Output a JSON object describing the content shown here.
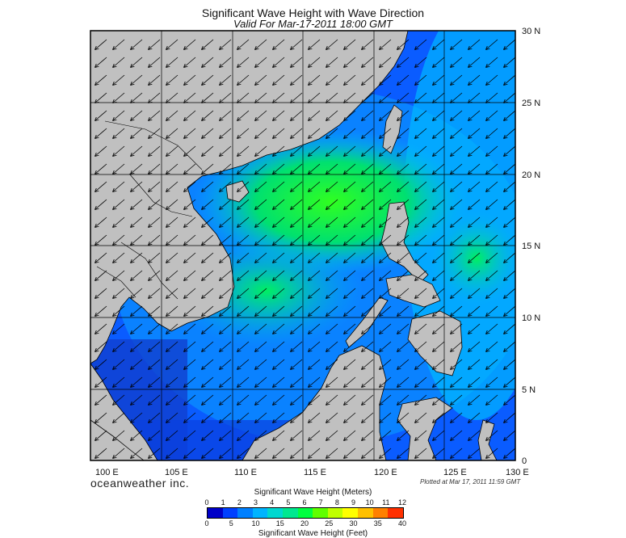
{
  "header": {
    "title": "Significant Wave Height with Wave Direction",
    "subtitle": "Valid For Mar-17-2011 18:00 GMT"
  },
  "map": {
    "lon_labels": [
      "100 E",
      "105 E",
      "110 E",
      "115 E",
      "120 E",
      "125 E",
      "130 E"
    ],
    "lat_labels": [
      "30 N",
      "25 N",
      "20 N",
      "15 N",
      "10 N",
      "5 N",
      "0"
    ],
    "lon_range": [
      100,
      130
    ],
    "lat_range": [
      0,
      30
    ],
    "land_color": "#c0c0c0",
    "wave_direction": "from northeast toward southwest"
  },
  "footer": {
    "brand": "oceanweather inc.",
    "plotted": "Plotted at Mar 17, 2011 11:59 GMT"
  },
  "legend": {
    "title_meters": "Significant Wave Height (Meters)",
    "title_feet": "Significant Wave Height (Feet)",
    "meter_ticks": [
      "0",
      "1",
      "2",
      "3",
      "4",
      "5",
      "6",
      "7",
      "8",
      "9",
      "10",
      "11",
      "12"
    ],
    "feet_ticks": [
      "0",
      "5",
      "10",
      "15",
      "20",
      "25",
      "30",
      "35",
      "40"
    ],
    "colors": [
      "#0000c8",
      "#0040ff",
      "#0080ff",
      "#00b4ff",
      "#00d8d0",
      "#00e890",
      "#00ff40",
      "#60ff00",
      "#c0ff00",
      "#ffff00",
      "#ffc000",
      "#ff8000",
      "#ff3000"
    ]
  }
}
